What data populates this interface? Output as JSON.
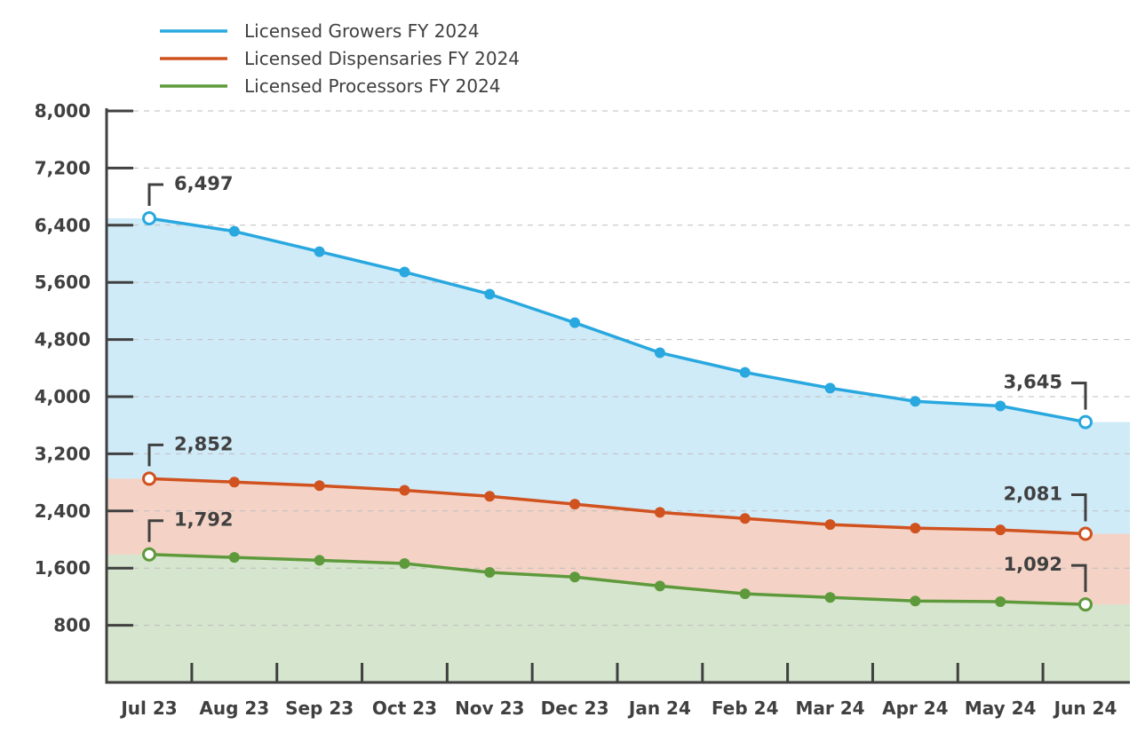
{
  "chart_data": {
    "type": "area",
    "title": "",
    "xlabel": "",
    "ylabel": "",
    "categories": [
      "Jul 23",
      "Aug 23",
      "Sep 23",
      "Oct 23",
      "Nov 23",
      "Dec 23",
      "Jan 24",
      "Feb 24",
      "Mar 24",
      "Apr 24",
      "May 24",
      "Jun 24"
    ],
    "ylim": [
      0,
      8000
    ],
    "yticks": [
      800,
      1600,
      2400,
      3200,
      4000,
      4800,
      5600,
      6400,
      7200,
      8000
    ],
    "ytick_labels": [
      "800",
      "1,600",
      "2,400",
      "3,200",
      "4,000",
      "4,800",
      "5,600",
      "6,400",
      "7,200",
      "8,000"
    ],
    "grid": "horizontal dashed",
    "legend_position": "top-left",
    "series": [
      {
        "name": "Licensed Growers FY 2024",
        "color": "#29a8df",
        "fill": "#d0ebf8",
        "values": [
          6497,
          6315,
          6030,
          5745,
          5435,
          5035,
          4615,
          4340,
          4120,
          3935,
          3870,
          3645
        ],
        "start_label": "6,497",
        "end_label": "3,645"
      },
      {
        "name": "Licensed Dispensaries FY 2024",
        "color": "#d0521f",
        "fill": "#f4d3c6",
        "values": [
          2852,
          2805,
          2755,
          2690,
          2605,
          2495,
          2380,
          2295,
          2210,
          2160,
          2135,
          2081
        ],
        "start_label": "2,852",
        "end_label": "2,081"
      },
      {
        "name": "Licensed Processors FY 2024",
        "color": "#5e9a3c",
        "fill": "#d6e5cd",
        "values": [
          1792,
          1750,
          1710,
          1665,
          1540,
          1475,
          1350,
          1240,
          1190,
          1140,
          1130,
          1092
        ],
        "start_label": "1,792",
        "end_label": "1,092"
      }
    ]
  }
}
